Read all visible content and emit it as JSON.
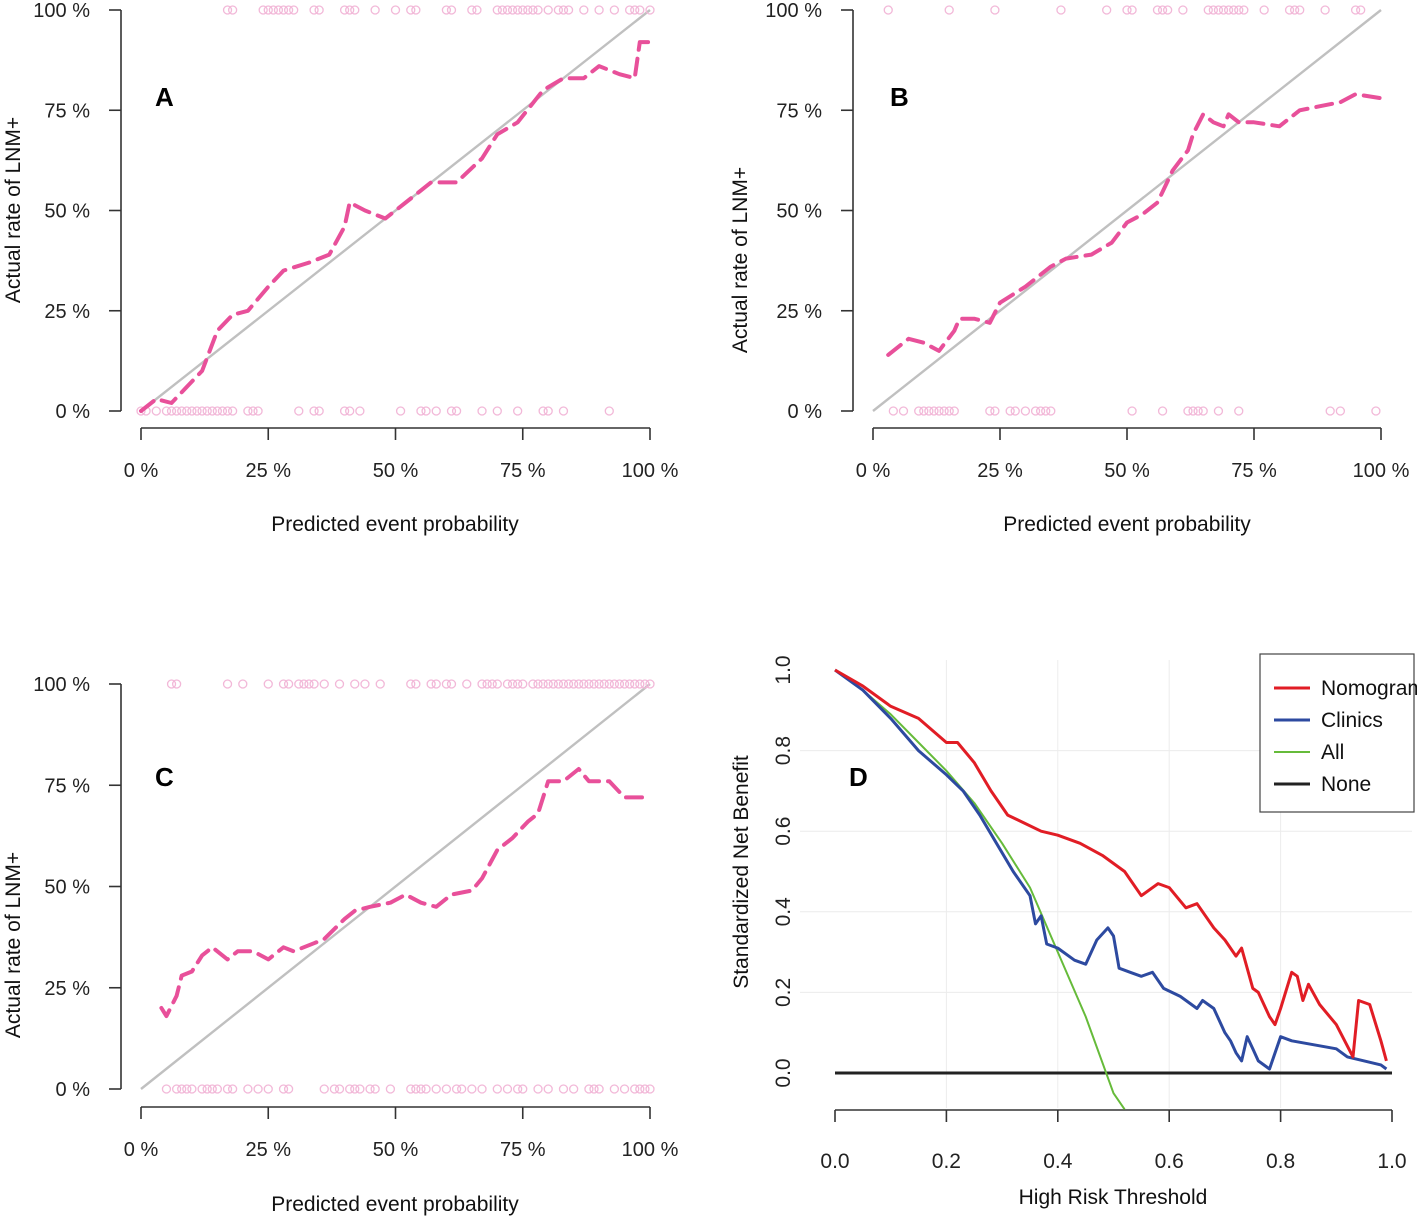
{
  "chart_data": [
    {
      "panel": "A",
      "type": "line",
      "xlabel": "Predicted event probability",
      "ylabel": "Actual rate of LNM+",
      "x_ticks": [
        "0 %",
        "25 %",
        "50 %",
        "75 %",
        "100 %"
      ],
      "y_ticks": [
        "0 %",
        "25 %",
        "50 %",
        "75 %",
        "100 %"
      ],
      "xlim": [
        0,
        1
      ],
      "ylim": [
        0,
        1
      ],
      "reference_line": [
        [
          0,
          0
        ],
        [
          1,
          1
        ]
      ],
      "calibration_curve": [
        [
          0,
          0
        ],
        [
          0.03,
          0.03
        ],
        [
          0.06,
          0.02
        ],
        [
          0.09,
          0.06
        ],
        [
          0.12,
          0.1
        ],
        [
          0.15,
          0.2
        ],
        [
          0.18,
          0.24
        ],
        [
          0.21,
          0.25
        ],
        [
          0.25,
          0.31
        ],
        [
          0.28,
          0.35
        ],
        [
          0.33,
          0.37
        ],
        [
          0.37,
          0.39
        ],
        [
          0.4,
          0.46
        ],
        [
          0.41,
          0.52
        ],
        [
          0.44,
          0.5
        ],
        [
          0.48,
          0.48
        ],
        [
          0.52,
          0.52
        ],
        [
          0.57,
          0.57
        ],
        [
          0.62,
          0.57
        ],
        [
          0.67,
          0.63
        ],
        [
          0.7,
          0.69
        ],
        [
          0.74,
          0.72
        ],
        [
          0.79,
          0.8
        ],
        [
          0.83,
          0.83
        ],
        [
          0.87,
          0.83
        ],
        [
          0.9,
          0.86
        ],
        [
          0.94,
          0.84
        ],
        [
          0.97,
          0.83
        ],
        [
          0.98,
          0.92
        ],
        [
          1.0,
          0.92
        ]
      ],
      "rug_top": [
        0.17,
        0.18,
        0.24,
        0.25,
        0.26,
        0.27,
        0.28,
        0.29,
        0.3,
        0.34,
        0.35,
        0.4,
        0.41,
        0.42,
        0.46,
        0.5,
        0.53,
        0.54,
        0.6,
        0.61,
        0.65,
        0.66,
        0.7,
        0.71,
        0.72,
        0.73,
        0.74,
        0.75,
        0.76,
        0.77,
        0.78,
        0.8,
        0.82,
        0.83,
        0.84,
        0.87,
        0.9,
        0.93,
        0.96,
        0.97,
        0.98,
        1.0
      ],
      "rug_bottom": [
        0.0,
        0.01,
        0.03,
        0.05,
        0.06,
        0.07,
        0.08,
        0.09,
        0.1,
        0.11,
        0.12,
        0.13,
        0.14,
        0.15,
        0.16,
        0.17,
        0.18,
        0.21,
        0.22,
        0.23,
        0.31,
        0.34,
        0.35,
        0.4,
        0.41,
        0.43,
        0.51,
        0.55,
        0.56,
        0.58,
        0.61,
        0.62,
        0.67,
        0.7,
        0.74,
        0.79,
        0.8,
        0.83,
        0.92
      ]
    },
    {
      "panel": "B",
      "type": "line",
      "xlabel": "Predicted event probability",
      "ylabel": "Actual rate of LNM+",
      "x_ticks": [
        "0 %",
        "25 %",
        "50 %",
        "75 %",
        "100 %"
      ],
      "y_ticks": [
        "0 %",
        "25 %",
        "50 %",
        "75 %",
        "100 %"
      ],
      "xlim": [
        0,
        1
      ],
      "ylim": [
        0,
        1
      ],
      "reference_line": [
        [
          0,
          0
        ],
        [
          1,
          1
        ]
      ],
      "calibration_curve": [
        [
          0.03,
          0.14
        ],
        [
          0.05,
          0.16
        ],
        [
          0.07,
          0.18
        ],
        [
          0.1,
          0.17
        ],
        [
          0.13,
          0.15
        ],
        [
          0.16,
          0.2
        ],
        [
          0.17,
          0.23
        ],
        [
          0.2,
          0.23
        ],
        [
          0.23,
          0.22
        ],
        [
          0.25,
          0.27
        ],
        [
          0.3,
          0.31
        ],
        [
          0.35,
          0.36
        ],
        [
          0.38,
          0.38
        ],
        [
          0.43,
          0.39
        ],
        [
          0.47,
          0.42
        ],
        [
          0.5,
          0.47
        ],
        [
          0.53,
          0.49
        ],
        [
          0.56,
          0.52
        ],
        [
          0.59,
          0.6
        ],
        [
          0.62,
          0.65
        ],
        [
          0.63,
          0.69
        ],
        [
          0.65,
          0.74
        ],
        [
          0.67,
          0.72
        ],
        [
          0.69,
          0.71
        ],
        [
          0.7,
          0.74
        ],
        [
          0.72,
          0.72
        ],
        [
          0.75,
          0.72
        ],
        [
          0.8,
          0.71
        ],
        [
          0.84,
          0.75
        ],
        [
          0.88,
          0.76
        ],
        [
          0.92,
          0.77
        ],
        [
          0.95,
          0.79
        ],
        [
          1.0,
          0.78
        ]
      ],
      "rug_top": [
        0.03,
        0.15,
        0.24,
        0.37,
        0.46,
        0.5,
        0.51,
        0.56,
        0.57,
        0.58,
        0.61,
        0.66,
        0.67,
        0.68,
        0.69,
        0.7,
        0.71,
        0.72,
        0.73,
        0.77,
        0.82,
        0.83,
        0.84,
        0.89,
        0.95,
        0.96
      ],
      "rug_bottom": [
        0.04,
        0.06,
        0.09,
        0.1,
        0.11,
        0.12,
        0.13,
        0.14,
        0.15,
        0.16,
        0.23,
        0.24,
        0.27,
        0.28,
        0.3,
        0.32,
        0.33,
        0.34,
        0.35,
        0.51,
        0.57,
        0.62,
        0.63,
        0.64,
        0.65,
        0.68,
        0.72,
        0.9,
        0.92,
        0.99
      ]
    },
    {
      "panel": "C",
      "type": "line",
      "xlabel": "Predicted event probability",
      "ylabel": "Actual rate of LNM+",
      "x_ticks": [
        "0 %",
        "25 %",
        "50 %",
        "75 %",
        "100 %"
      ],
      "y_ticks": [
        "0 %",
        "25 %",
        "50 %",
        "75 %",
        "100 %"
      ],
      "xlim": [
        0,
        1
      ],
      "ylim": [
        0,
        1
      ],
      "reference_line": [
        [
          0,
          0
        ],
        [
          1,
          1
        ]
      ],
      "calibration_curve": [
        [
          0.04,
          0.2
        ],
        [
          0.05,
          0.18
        ],
        [
          0.07,
          0.23
        ],
        [
          0.08,
          0.28
        ],
        [
          0.1,
          0.29
        ],
        [
          0.12,
          0.33
        ],
        [
          0.14,
          0.35
        ],
        [
          0.17,
          0.32
        ],
        [
          0.19,
          0.34
        ],
        [
          0.22,
          0.34
        ],
        [
          0.25,
          0.32
        ],
        [
          0.28,
          0.35
        ],
        [
          0.3,
          0.34
        ],
        [
          0.34,
          0.36
        ],
        [
          0.36,
          0.37
        ],
        [
          0.4,
          0.42
        ],
        [
          0.42,
          0.44
        ],
        [
          0.45,
          0.45
        ],
        [
          0.49,
          0.46
        ],
        [
          0.52,
          0.48
        ],
        [
          0.55,
          0.46
        ],
        [
          0.58,
          0.45
        ],
        [
          0.61,
          0.48
        ],
        [
          0.65,
          0.49
        ],
        [
          0.67,
          0.52
        ],
        [
          0.7,
          0.59
        ],
        [
          0.73,
          0.62
        ],
        [
          0.76,
          0.66
        ],
        [
          0.78,
          0.68
        ],
        [
          0.8,
          0.76
        ],
        [
          0.83,
          0.76
        ],
        [
          0.86,
          0.79
        ],
        [
          0.88,
          0.76
        ],
        [
          0.92,
          0.76
        ],
        [
          0.95,
          0.72
        ],
        [
          1.0,
          0.72
        ]
      ],
      "rug_top": [
        0.06,
        0.07,
        0.17,
        0.2,
        0.25,
        0.28,
        0.29,
        0.31,
        0.32,
        0.33,
        0.34,
        0.36,
        0.39,
        0.42,
        0.44,
        0.47,
        0.53,
        0.54,
        0.57,
        0.58,
        0.6,
        0.61,
        0.64,
        0.67,
        0.68,
        0.69,
        0.7,
        0.72,
        0.73,
        0.74,
        0.75,
        0.77,
        0.78,
        0.79,
        0.8,
        0.81,
        0.82,
        0.83,
        0.84,
        0.85,
        0.86,
        0.87,
        0.88,
        0.89,
        0.9,
        0.91,
        0.92,
        0.93,
        0.94,
        0.95,
        0.96,
        0.97,
        0.98,
        0.99,
        1.0
      ],
      "rug_bottom": [
        0.05,
        0.07,
        0.08,
        0.09,
        0.1,
        0.12,
        0.13,
        0.14,
        0.15,
        0.17,
        0.18,
        0.21,
        0.23,
        0.25,
        0.28,
        0.29,
        0.36,
        0.38,
        0.39,
        0.41,
        0.42,
        0.43,
        0.45,
        0.46,
        0.49,
        0.53,
        0.54,
        0.55,
        0.56,
        0.58,
        0.6,
        0.62,
        0.63,
        0.65,
        0.67,
        0.7,
        0.72,
        0.74,
        0.75,
        0.78,
        0.8,
        0.83,
        0.85,
        0.88,
        0.89,
        0.9,
        0.93,
        0.95,
        0.97,
        0.98,
        0.99,
        1.0
      ]
    },
    {
      "panel": "D",
      "type": "line",
      "xlabel": "High Risk Threshold",
      "ylabel": "Standardized Net Benefit",
      "x_ticks": [
        "0.0",
        "0.2",
        "0.4",
        "0.6",
        "0.8",
        "1.0"
      ],
      "y_ticks": [
        "0.0",
        "0.2",
        "0.4",
        "0.6",
        "0.8",
        "1.0"
      ],
      "xlim": [
        0,
        1
      ],
      "ylim": [
        -0.09,
        1.0
      ],
      "legend": [
        "Nomogram",
        "Clinics",
        "All",
        "None"
      ],
      "legend_position": "top-right",
      "series": [
        {
          "name": "Nomogram",
          "color": "#e11d25",
          "points": [
            [
              0,
              1.0
            ],
            [
              0.05,
              0.96
            ],
            [
              0.1,
              0.91
            ],
            [
              0.15,
              0.88
            ],
            [
              0.2,
              0.82
            ],
            [
              0.22,
              0.82
            ],
            [
              0.25,
              0.77
            ],
            [
              0.28,
              0.7
            ],
            [
              0.31,
              0.64
            ],
            [
              0.34,
              0.62
            ],
            [
              0.37,
              0.6
            ],
            [
              0.4,
              0.59
            ],
            [
              0.44,
              0.57
            ],
            [
              0.48,
              0.54
            ],
            [
              0.52,
              0.5
            ],
            [
              0.55,
              0.44
            ],
            [
              0.58,
              0.47
            ],
            [
              0.6,
              0.46
            ],
            [
              0.63,
              0.41
            ],
            [
              0.65,
              0.42
            ],
            [
              0.68,
              0.36
            ],
            [
              0.7,
              0.33
            ],
            [
              0.72,
              0.29
            ],
            [
              0.73,
              0.31
            ],
            [
              0.75,
              0.21
            ],
            [
              0.76,
              0.2
            ],
            [
              0.78,
              0.14
            ],
            [
              0.79,
              0.12
            ],
            [
              0.8,
              0.16
            ],
            [
              0.82,
              0.25
            ],
            [
              0.83,
              0.24
            ],
            [
              0.84,
              0.18
            ],
            [
              0.85,
              0.22
            ],
            [
              0.87,
              0.17
            ],
            [
              0.9,
              0.12
            ],
            [
              0.93,
              0.04
            ],
            [
              0.94,
              0.18
            ],
            [
              0.96,
              0.17
            ],
            [
              0.98,
              0.08
            ],
            [
              0.99,
              0.03
            ]
          ]
        },
        {
          "name": "Clinics",
          "color": "#2d4aa0",
          "points": [
            [
              0,
              1.0
            ],
            [
              0.05,
              0.95
            ],
            [
              0.1,
              0.88
            ],
            [
              0.15,
              0.8
            ],
            [
              0.2,
              0.74
            ],
            [
              0.23,
              0.7
            ],
            [
              0.26,
              0.64
            ],
            [
              0.29,
              0.57
            ],
            [
              0.32,
              0.5
            ],
            [
              0.35,
              0.44
            ],
            [
              0.36,
              0.37
            ],
            [
              0.37,
              0.39
            ],
            [
              0.38,
              0.32
            ],
            [
              0.4,
              0.31
            ],
            [
              0.43,
              0.28
            ],
            [
              0.45,
              0.27
            ],
            [
              0.47,
              0.33
            ],
            [
              0.49,
              0.36
            ],
            [
              0.5,
              0.34
            ],
            [
              0.51,
              0.26
            ],
            [
              0.53,
              0.25
            ],
            [
              0.55,
              0.24
            ],
            [
              0.57,
              0.25
            ],
            [
              0.59,
              0.21
            ],
            [
              0.62,
              0.19
            ],
            [
              0.65,
              0.16
            ],
            [
              0.66,
              0.18
            ],
            [
              0.68,
              0.16
            ],
            [
              0.7,
              0.1
            ],
            [
              0.71,
              0.08
            ],
            [
              0.72,
              0.05
            ],
            [
              0.73,
              0.03
            ],
            [
              0.74,
              0.09
            ],
            [
              0.75,
              0.06
            ],
            [
              0.76,
              0.03
            ],
            [
              0.78,
              0.01
            ],
            [
              0.8,
              0.09
            ],
            [
              0.82,
              0.08
            ],
            [
              0.86,
              0.07
            ],
            [
              0.9,
              0.06
            ],
            [
              0.92,
              0.04
            ],
            [
              0.95,
              0.03
            ],
            [
              0.98,
              0.02
            ],
            [
              0.99,
              0.01
            ]
          ]
        },
        {
          "name": "All",
          "color": "#66bb3a",
          "points": [
            [
              0,
              1.0
            ],
            [
              0.05,
              0.95
            ],
            [
              0.1,
              0.89
            ],
            [
              0.15,
              0.82
            ],
            [
              0.2,
              0.75
            ],
            [
              0.25,
              0.67
            ],
            [
              0.3,
              0.57
            ],
            [
              0.35,
              0.46
            ],
            [
              0.4,
              0.3
            ],
            [
              0.45,
              0.14
            ],
            [
              0.5,
              -0.05
            ],
            [
              0.52,
              -0.09
            ]
          ]
        },
        {
          "name": "None",
          "color": "#222222",
          "points": [
            [
              0,
              0
            ],
            [
              1.0,
              0
            ]
          ]
        }
      ]
    }
  ]
}
